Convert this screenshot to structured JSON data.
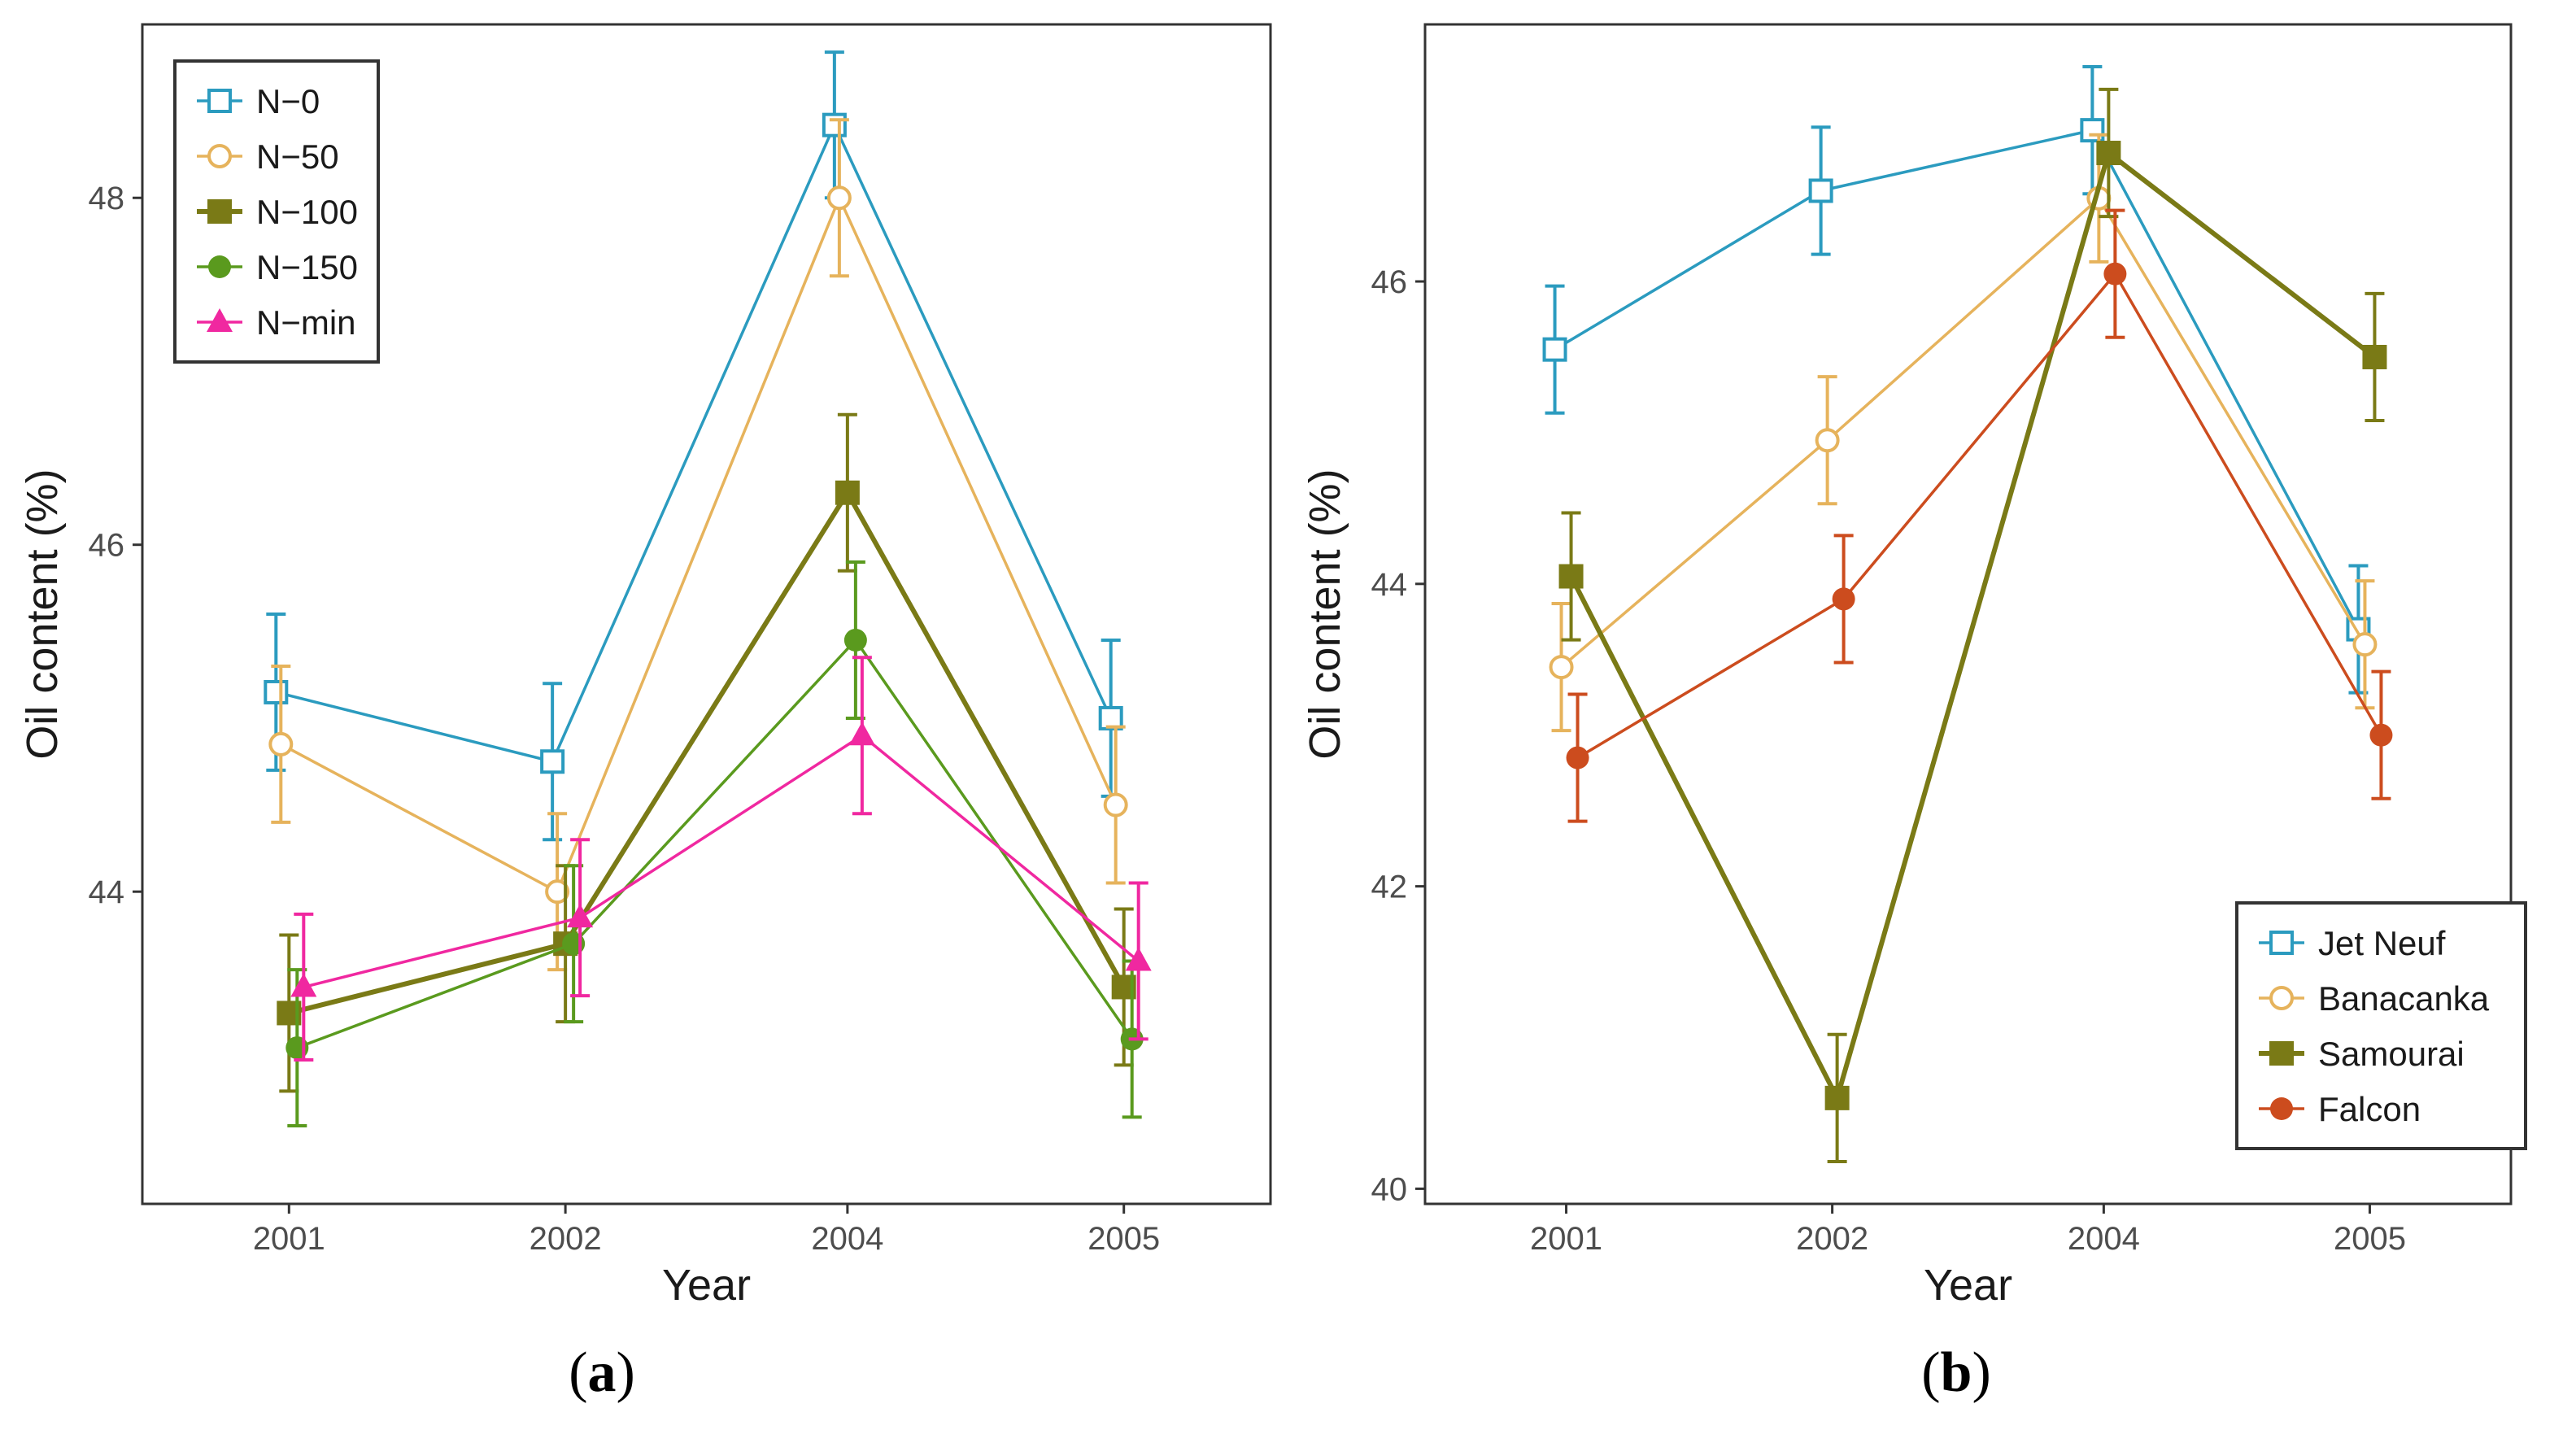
{
  "chart_data": [
    {
      "type": "line",
      "caption_letter": "a",
      "xlabel": "Year",
      "ylabel": "Oil content (%)",
      "categories": [
        "2001",
        "2002",
        "2004",
        "2005"
      ],
      "ylim": [
        42.2,
        49.0
      ],
      "yticks": [
        44,
        46,
        48
      ],
      "grid": false,
      "legend_position": "top-left",
      "series": [
        {
          "name": "N−0",
          "color": "#2b9bbf",
          "marker": "square-open",
          "values": [
            45.15,
            44.75,
            48.42,
            45.0
          ],
          "errors": [
            0.45,
            0.45,
            0.42,
            0.45
          ]
        },
        {
          "name": "N−50",
          "color": "#e6b35c",
          "marker": "circle-open",
          "values": [
            44.85,
            44.0,
            48.0,
            44.5
          ],
          "errors": [
            0.45,
            0.45,
            0.45,
            0.45
          ]
        },
        {
          "name": "N−100",
          "color": "#7a7a16",
          "marker": "square",
          "values": [
            43.3,
            43.7,
            46.3,
            43.45
          ],
          "errors": [
            0.45,
            0.45,
            0.45,
            0.45
          ]
        },
        {
          "name": "N−150",
          "color": "#5a9a1e",
          "marker": "circle",
          "values": [
            43.1,
            43.7,
            45.45,
            43.15
          ],
          "errors": [
            0.45,
            0.45,
            0.45,
            0.45
          ]
        },
        {
          "name": "N−min",
          "color": "#f028a0",
          "marker": "triangle",
          "values": [
            43.45,
            43.85,
            44.9,
            43.6
          ],
          "errors": [
            0.42,
            0.45,
            0.45,
            0.45
          ]
        }
      ]
    },
    {
      "type": "line",
      "caption_letter": "b",
      "xlabel": "Year",
      "ylabel": "Oil content (%)",
      "categories": [
        "2001",
        "2002",
        "2004",
        "2005"
      ],
      "ylim": [
        39.9,
        47.7
      ],
      "yticks": [
        40,
        42,
        44,
        46
      ],
      "grid": false,
      "legend_position": "bottom-right",
      "series": [
        {
          "name": "Jet Neuf",
          "color": "#2b9bbf",
          "marker": "square-open",
          "values": [
            45.55,
            46.6,
            47.0,
            43.7
          ],
          "errors": [
            0.42,
            0.42,
            0.42,
            0.42
          ]
        },
        {
          "name": "Banacanka",
          "color": "#e6b35c",
          "marker": "circle-open",
          "values": [
            43.45,
            44.95,
            46.55,
            43.6
          ],
          "errors": [
            0.42,
            0.42,
            0.42,
            0.42
          ]
        },
        {
          "name": "Samourai",
          "color": "#7a7a16",
          "marker": "square",
          "values": [
            44.05,
            40.6,
            46.85,
            45.5
          ],
          "errors": [
            0.42,
            0.42,
            0.42,
            0.42
          ]
        },
        {
          "name": "Falcon",
          "color": "#cc4c1e",
          "marker": "circle",
          "values": [
            42.85,
            43.9,
            46.05,
            43.0
          ],
          "errors": [
            0.42,
            0.42,
            0.42,
            0.42
          ]
        }
      ]
    }
  ]
}
